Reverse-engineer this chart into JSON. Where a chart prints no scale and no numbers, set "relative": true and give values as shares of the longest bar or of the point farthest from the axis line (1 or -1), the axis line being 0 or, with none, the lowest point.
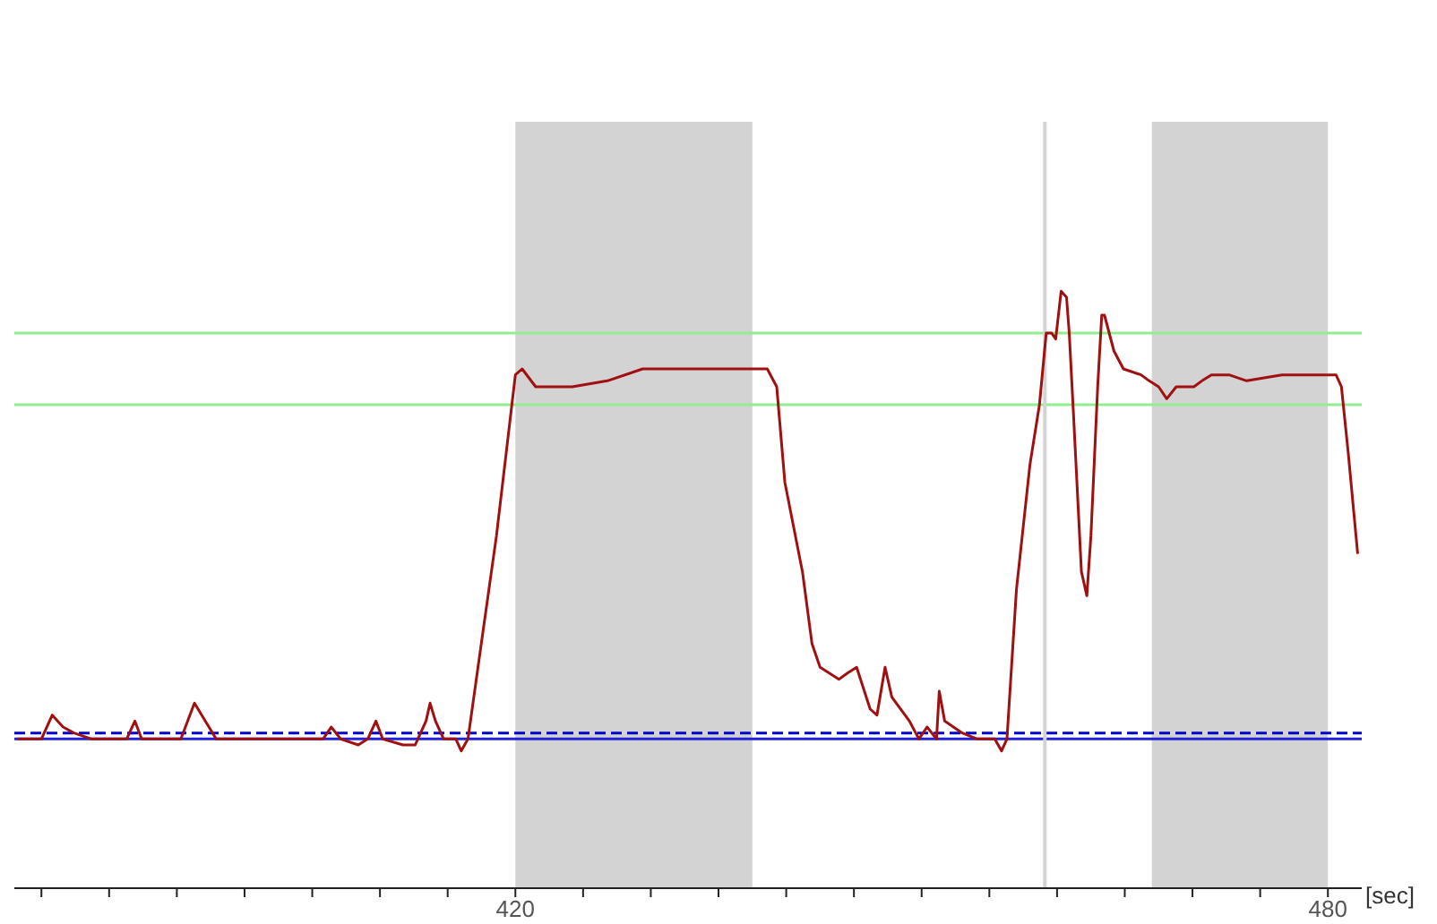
{
  "chart_data": {
    "type": "line",
    "relative": true,
    "xlabel": "[sec]",
    "xlim": [
      383,
      482.5
    ],
    "xticks": [
      {
        "value": 385,
        "label": null
      },
      {
        "value": 390,
        "label": null
      },
      {
        "value": 395,
        "label": null
      },
      {
        "value": 400,
        "label": null
      },
      {
        "value": 405,
        "label": null
      },
      {
        "value": 410,
        "label": null
      },
      {
        "value": 415,
        "label": null
      },
      420,
      {
        "value": 425,
        "label": null
      },
      {
        "value": 430,
        "label": null
      },
      {
        "value": 435,
        "label": null
      },
      {
        "value": 440,
        "label": null
      },
      {
        "value": 445,
        "label": null
      },
      {
        "value": 450,
        "label": null
      },
      {
        "value": 455,
        "label": null
      },
      {
        "value": 460,
        "label": null
      },
      {
        "value": 465,
        "label": null
      },
      {
        "value": 470,
        "label": null
      },
      {
        "value": 475,
        "label": null
      },
      480
    ],
    "grid": false,
    "marker": "none",
    "line_style": "solid",
    "x": [
      383.2,
      385.0,
      385.8,
      386.6,
      387.4,
      388.7,
      390.0,
      391.3,
      391.9,
      392.4,
      394.0,
      395.3,
      396.3,
      397.1,
      397.9,
      399.2,
      401.8,
      404.5,
      405.8,
      406.4,
      407.1,
      408.4,
      409.1,
      409.7,
      410.2,
      411.7,
      412.6,
      413.4,
      413.7,
      414.1,
      414.7,
      415.6,
      416.0,
      416.5,
      417.3,
      418.6,
      420.0,
      420.5,
      421.5,
      424.2,
      426.8,
      429.4,
      432.0,
      434.7,
      437.3,
      438.6,
      439.3,
      439.9,
      441.2,
      441.9,
      442.5,
      443.9,
      444.5,
      445.2,
      446.2,
      446.7,
      447.3,
      447.8,
      449.1,
      449.8,
      450.4,
      451.1,
      451.3,
      451.7,
      453.0,
      454.1,
      455.0,
      455.4,
      455.9,
      456.3,
      457.0,
      458.0,
      458.7,
      459.2,
      459.6,
      459.9,
      460.3,
      460.7,
      460.9,
      461.2,
      461.8,
      462.2,
      462.5,
      463.0,
      463.3,
      463.5,
      464.2,
      464.9,
      466.2,
      466.8,
      467.5,
      468.1,
      468.8,
      470.1,
      470.7,
      471.4,
      472.7,
      474.0,
      476.6,
      479.2,
      480.6,
      481.0,
      481.5,
      482.2
    ],
    "series": [
      {
        "color": "#a01010",
        "values": [
          0.25,
          0.25,
          0.29,
          0.27,
          0.26,
          0.25,
          0.25,
          0.25,
          0.28,
          0.25,
          0.25,
          0.25,
          0.31,
          0.28,
          0.25,
          0.25,
          0.25,
          0.25,
          0.25,
          0.27,
          0.25,
          0.24,
          0.25,
          0.28,
          0.25,
          0.24,
          0.24,
          0.28,
          0.31,
          0.28,
          0.25,
          0.25,
          0.23,
          0.25,
          0.38,
          0.59,
          0.86,
          0.87,
          0.84,
          0.84,
          0.85,
          0.87,
          0.87,
          0.87,
          0.87,
          0.87,
          0.84,
          0.68,
          0.53,
          0.41,
          0.37,
          0.35,
          0.36,
          0.37,
          0.3,
          0.29,
          0.37,
          0.32,
          0.28,
          0.25,
          0.27,
          0.25,
          0.33,
          0.28,
          0.26,
          0.25,
          0.25,
          0.25,
          0.23,
          0.25,
          0.5,
          0.71,
          0.81,
          0.93,
          0.93,
          0.92,
          1.0,
          0.99,
          0.93,
          0.8,
          0.53,
          0.49,
          0.59,
          0.84,
          0.96,
          0.96,
          0.9,
          0.87,
          0.86,
          0.85,
          0.84,
          0.82,
          0.84,
          0.84,
          0.85,
          0.86,
          0.86,
          0.85,
          0.86,
          0.86,
          0.86,
          0.84,
          0.73,
          0.56
        ]
      }
    ],
    "ref_lines": [
      {
        "axis": "y",
        "value": 0.93,
        "color": "#90ee90",
        "line_style": "solid"
      },
      {
        "axis": "y",
        "value": 0.81,
        "color": "#90ee90",
        "line_style": "solid"
      },
      {
        "axis": "y",
        "value": 0.26,
        "color": "#0000cc",
        "line_style": "dashed"
      },
      {
        "axis": "y",
        "value": 0.25,
        "color": "#2222dd",
        "line_style": "solid"
      },
      {
        "axis": "x",
        "value": 459.1,
        "color": "#d3d3d3",
        "line_style": "solid"
      }
    ],
    "bands": [
      {
        "axis": "x",
        "from": 420,
        "to": 437.5,
        "color": "#d3d3d3"
      },
      {
        "axis": "x",
        "from": 467,
        "to": 480,
        "color": "#d3d3d3"
      }
    ]
  }
}
